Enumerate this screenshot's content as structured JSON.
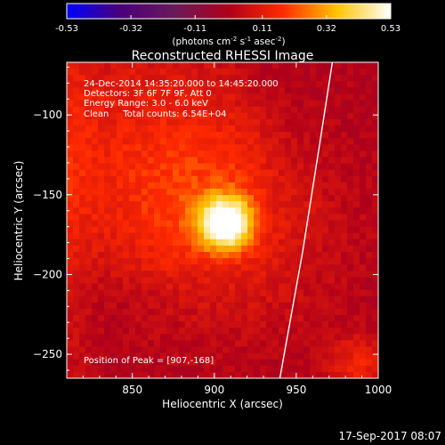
{
  "chart_data": {
    "type": "heatmap",
    "title": "Reconstructed RHESSI Image",
    "colorbar": {
      "ticks": [
        "-0.53",
        "-0.32",
        "-0.11",
        "0.11",
        "0.32",
        "0.53"
      ],
      "range": [
        -0.53,
        0.53
      ],
      "unit_parts": [
        "(photons cm",
        "-2",
        " s",
        "-1",
        " asec",
        "-2",
        ")"
      ]
    },
    "xlabel": "Heliocentric X (arcsec)",
    "ylabel": "Heliocentric Y (arcsec)",
    "xlim": [
      810,
      1000
    ],
    "ylim": [
      -265,
      -67
    ],
    "xticks": [
      850,
      900,
      950,
      1000
    ],
    "yticks": [
      -100,
      -150,
      -200,
      -250
    ],
    "annotations": [
      "24-Dec-2014 14:35:20.000 to 14:45:20.000",
      "Detectors: 3F 6F 7F 9F, Att 0",
      "Energy Range: 3.0 - 6.0 keV",
      "Clean     Total counts: 6.54E+04"
    ],
    "peak_label": "Position of Peak = [907,-168]",
    "peak": {
      "x": 907,
      "y": -168,
      "value": 0.53
    },
    "limb_curve": [
      {
        "x": 972,
        "y": -67
      },
      {
        "x": 964,
        "y": -120
      },
      {
        "x": 954,
        "y": -185
      },
      {
        "x": 940,
        "y": -265
      }
    ],
    "colormap": [
      "#0000ff",
      "#4a0078",
      "#6a1a5a",
      "#b0001a",
      "#ff2a00",
      "#ffc400",
      "#ffffff"
    ]
  },
  "footer": {
    "date": "17-Sep-2017 08:07"
  }
}
